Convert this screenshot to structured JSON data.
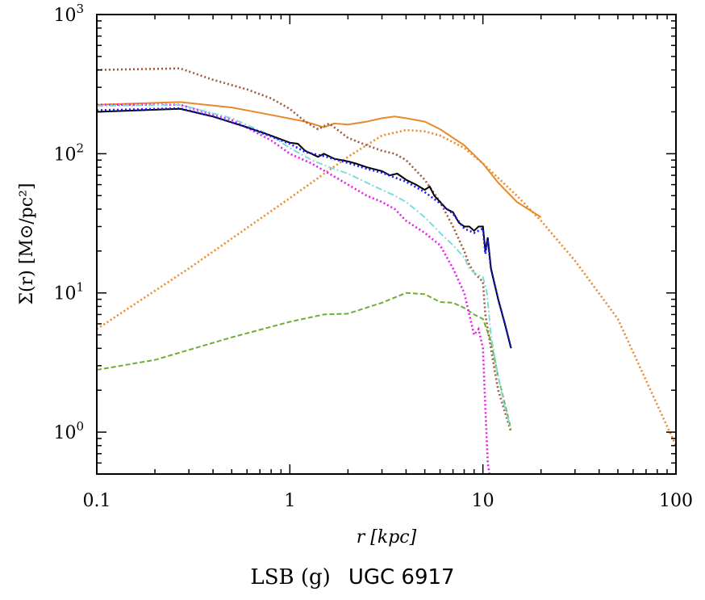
{
  "chart_data": {
    "type": "line",
    "title": "",
    "xlabel": "r [kpc]",
    "ylabel": "Σ(r) [M⊙/pc²]",
    "xscale": "log",
    "yscale": "log",
    "xlim": [
      0.1,
      100
    ],
    "ylim": [
      0.5,
      1000
    ],
    "xticks": [
      "0.1",
      "1",
      "10",
      "100"
    ],
    "yticks": [
      {
        "base": "10",
        "exp": "0"
      },
      {
        "base": "10",
        "exp": "1"
      },
      {
        "base": "10",
        "exp": "2"
      },
      {
        "base": "10",
        "exp": "3"
      }
    ],
    "grid": false,
    "series": [
      {
        "color": "#ec8a2a",
        "style": "dotted",
        "points": [
          [
            0.1,
            5.5
          ],
          [
            0.3,
            15
          ],
          [
            1,
            48
          ],
          [
            2,
            95
          ],
          [
            3,
            135
          ],
          [
            4,
            148
          ],
          [
            5,
            145
          ],
          [
            6,
            135
          ],
          [
            8,
            110
          ],
          [
            10,
            85
          ],
          [
            15,
            50
          ],
          [
            20,
            33
          ],
          [
            30,
            17
          ],
          [
            50,
            6.5
          ],
          [
            100,
            0.8
          ]
        ]
      },
      {
        "color": "#e8892a",
        "style": "solid",
        "points": [
          [
            0.1,
            225
          ],
          [
            0.27,
            235
          ],
          [
            0.5,
            215
          ],
          [
            0.8,
            190
          ],
          [
            1.2,
            170
          ],
          [
            1.5,
            155
          ],
          [
            1.7,
            165
          ],
          [
            2,
            162
          ],
          [
            2.5,
            170
          ],
          [
            3,
            180
          ],
          [
            3.5,
            185
          ],
          [
            4,
            180
          ],
          [
            5,
            170
          ],
          [
            6,
            150
          ],
          [
            8,
            115
          ],
          [
            10,
            85
          ],
          [
            12,
            62
          ],
          [
            15,
            45
          ],
          [
            20,
            35
          ]
        ]
      },
      {
        "color": "#a0583a",
        "style": "dotted",
        "points": [
          [
            0.1,
            400
          ],
          [
            0.27,
            410
          ],
          [
            0.4,
            340
          ],
          [
            0.6,
            290
          ],
          [
            0.8,
            250
          ],
          [
            1,
            210
          ],
          [
            1.2,
            170
          ],
          [
            1.4,
            150
          ],
          [
            1.6,
            165
          ],
          [
            2,
            130
          ],
          [
            2.5,
            115
          ],
          [
            3,
            105
          ],
          [
            3.5,
            100
          ],
          [
            4,
            90
          ],
          [
            5,
            65
          ],
          [
            6,
            45
          ],
          [
            7,
            30
          ],
          [
            8,
            20
          ],
          [
            8.5,
            16
          ],
          [
            9,
            14
          ],
          [
            10,
            12
          ],
          [
            10.3,
            7
          ],
          [
            11,
            4
          ],
          [
            12,
            2
          ],
          [
            14,
            1
          ]
        ]
      },
      {
        "color": "#6cb033",
        "style": "dashed",
        "points": [
          [
            0.1,
            2.8
          ],
          [
            0.2,
            3.3
          ],
          [
            0.5,
            4.8
          ],
          [
            1,
            6.2
          ],
          [
            1.5,
            7
          ],
          [
            2,
            7.1
          ],
          [
            3,
            8.5
          ],
          [
            4,
            10
          ],
          [
            5,
            9.8
          ],
          [
            6,
            8.6
          ],
          [
            7,
            8.5
          ],
          [
            8,
            7.8
          ],
          [
            9,
            7
          ],
          [
            10,
            6.5
          ],
          [
            11,
            4.5
          ],
          [
            12,
            2.5
          ],
          [
            14,
            1.05
          ]
        ]
      },
      {
        "color": "#e81ce8",
        "style": "dotted",
        "points": [
          [
            0.1,
            225
          ],
          [
            0.27,
            225
          ],
          [
            0.5,
            175
          ],
          [
            0.8,
            125
          ],
          [
            1,
            100
          ],
          [
            1.3,
            85
          ],
          [
            1.6,
            72
          ],
          [
            2,
            60
          ],
          [
            2.5,
            50
          ],
          [
            3,
            45
          ],
          [
            3.5,
            40
          ],
          [
            4,
            33
          ],
          [
            5,
            27
          ],
          [
            6,
            22
          ],
          [
            7,
            15
          ],
          [
            8,
            10
          ],
          [
            8.5,
            7
          ],
          [
            9,
            5
          ],
          [
            9.5,
            5.5
          ],
          [
            10,
            4
          ],
          [
            10.3,
            1.5
          ],
          [
            10.6,
            0.6
          ],
          [
            10.8,
            0.5
          ]
        ]
      },
      {
        "color": "#7fdada",
        "style": "dashdot",
        "points": [
          [
            0.1,
            220
          ],
          [
            0.27,
            225
          ],
          [
            0.5,
            180
          ],
          [
            0.8,
            135
          ],
          [
            1,
            110
          ],
          [
            1.3,
            90
          ],
          [
            1.6,
            80
          ],
          [
            2,
            72
          ],
          [
            2.5,
            62
          ],
          [
            3,
            55
          ],
          [
            3.5,
            50
          ],
          [
            4,
            45
          ],
          [
            5,
            35
          ],
          [
            6,
            27
          ],
          [
            7,
            22
          ],
          [
            8,
            18
          ],
          [
            8.5,
            15
          ],
          [
            9,
            14
          ],
          [
            10,
            13
          ],
          [
            10.5,
            10
          ],
          [
            11,
            5
          ],
          [
            12,
            2.5
          ],
          [
            13,
            1.5
          ],
          [
            14,
            1.05
          ]
        ]
      },
      {
        "color": "#000000",
        "style": "solid",
        "points": [
          [
            0.1,
            200
          ],
          [
            0.27,
            210
          ],
          [
            0.4,
            185
          ],
          [
            0.6,
            155
          ],
          [
            0.8,
            135
          ],
          [
            1,
            120
          ],
          [
            1.1,
            118
          ],
          [
            1.2,
            105
          ],
          [
            1.4,
            95
          ],
          [
            1.5,
            100
          ],
          [
            1.7,
            92
          ],
          [
            2,
            88
          ],
          [
            2.2,
            85
          ],
          [
            2.5,
            80
          ],
          [
            3,
            75
          ],
          [
            3.3,
            70
          ],
          [
            3.6,
            72
          ],
          [
            4,
            65
          ],
          [
            4.5,
            60
          ],
          [
            5,
            55
          ],
          [
            5.3,
            58
          ],
          [
            5.6,
            50
          ],
          [
            6,
            45
          ],
          [
            6.5,
            40
          ],
          [
            7,
            38
          ],
          [
            7.5,
            32
          ],
          [
            8,
            30
          ],
          [
            8.5,
            30
          ],
          [
            9,
            28
          ],
          [
            9.5,
            30
          ],
          [
            10,
            30
          ],
          [
            10.3,
            20
          ],
          [
            10.6,
            25
          ],
          [
            11,
            15
          ],
          [
            12,
            9
          ],
          [
            13,
            6
          ],
          [
            14,
            4
          ]
        ]
      },
      {
        "color": "#1a1aff",
        "style": "dotted",
        "points": [
          [
            0.1,
            205
          ],
          [
            0.27,
            212
          ],
          [
            0.4,
            185
          ],
          [
            0.6,
            155
          ],
          [
            0.8,
            133
          ],
          [
            1,
            118
          ],
          [
            1.2,
            103
          ],
          [
            1.5,
            96
          ],
          [
            2,
            86
          ],
          [
            2.5,
            78
          ],
          [
            3,
            73
          ],
          [
            4,
            63
          ],
          [
            5,
            53
          ],
          [
            6,
            44
          ],
          [
            7,
            37
          ],
          [
            8,
            29
          ],
          [
            9,
            27
          ],
          [
            10,
            29
          ],
          [
            10.3,
            19
          ],
          [
            10.6,
            24
          ],
          [
            11,
            15
          ],
          [
            12,
            9
          ],
          [
            13,
            6
          ],
          [
            14,
            4
          ]
        ]
      }
    ]
  },
  "caption": {
    "sample": "LSB (g)",
    "galaxy": "UGC 6917"
  }
}
